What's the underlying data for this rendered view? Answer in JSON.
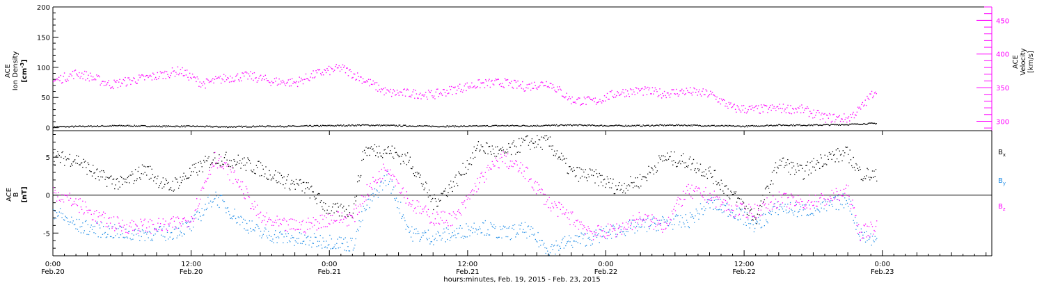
{
  "chart_data": [
    {
      "type": "scatter",
      "panel": "plasma",
      "ylabel_left": [
        "ACE",
        "Ion Density",
        "[cm",
        "-3",
        "]"
      ],
      "ylabel_right": [
        "ACE",
        "Velocity",
        "[km/s]"
      ],
      "left_axis": {
        "ylim": [
          -5,
          200
        ],
        "ticks": [
          "0",
          "50",
          "100",
          "150",
          "200"
        ]
      },
      "right_axis": {
        "ylim": [
          286,
          470
        ],
        "ticks": [
          "300",
          "350",
          "400",
          "450"
        ]
      },
      "colors": {
        "density": "#000000",
        "velocity": "#ff00ff"
      },
      "series": [
        {
          "name": "Ion Density",
          "axis": "left",
          "x_hours": [
            0,
            3,
            6,
            9,
            12,
            15,
            18,
            21,
            24,
            27,
            30,
            33,
            36,
            39,
            42,
            45,
            48,
            51,
            54,
            57,
            60,
            63,
            66,
            69,
            71.5
          ],
          "values": [
            2,
            3,
            4,
            3,
            3,
            2,
            3,
            3,
            4,
            5,
            4,
            3,
            3,
            4,
            4,
            5,
            4,
            4,
            5,
            4,
            3,
            5,
            5,
            6,
            8
          ]
        },
        {
          "name": "Velocity",
          "axis": "right",
          "x_hours": [
            0,
            2,
            3,
            5,
            7,
            9,
            11,
            13,
            15,
            17,
            19,
            21,
            23,
            25,
            27,
            29,
            31,
            33,
            35,
            37,
            39,
            41,
            43,
            45,
            47,
            49,
            51,
            53,
            55,
            57,
            59,
            61,
            63,
            65,
            67,
            69,
            70,
            71.5
          ],
          "values": [
            360,
            372,
            368,
            355,
            362,
            368,
            376,
            356,
            365,
            368,
            360,
            358,
            372,
            380,
            362,
            343,
            342,
            340,
            349,
            356,
            358,
            352,
            358,
            332,
            330,
            343,
            346,
            342,
            345,
            341,
            320,
            318,
            320,
            318,
            306,
            305,
            318,
            350
          ]
        }
      ]
    },
    {
      "type": "scatter",
      "panel": "magnetic-field",
      "ylabel_left": [
        "ACE",
        "B",
        "[nT]"
      ],
      "ylim": [
        -8,
        8.5
      ],
      "ticks": [
        "5",
        "0",
        "-5"
      ],
      "zero_line": true,
      "legend_position": "right",
      "colors": {
        "Bx": "#000000",
        "By": "#1e8ce6",
        "Bz": "#ff00ff"
      },
      "series": [
        {
          "name": "Bx",
          "label_main": "B",
          "label_sub": "x",
          "x_hours": [
            0,
            2,
            4,
            6,
            8,
            10,
            12,
            14,
            16,
            18,
            20,
            22,
            24,
            26,
            27,
            29,
            31,
            33,
            35,
            37,
            39,
            41,
            43,
            45,
            47,
            49,
            51,
            53,
            55,
            57,
            59,
            61,
            63,
            65,
            67,
            69,
            70,
            71.5
          ],
          "values": [
            5,
            4.8,
            2.5,
            1.5,
            3.5,
            1,
            3,
            5,
            4.5,
            3.5,
            2,
            1,
            -2,
            -2,
            6,
            6,
            4.5,
            -1,
            2,
            6.5,
            5.5,
            7,
            7,
            3,
            2.5,
            1,
            2,
            5,
            4.5,
            3,
            0,
            -3,
            4.5,
            3,
            5,
            5.5,
            3,
            2.5
          ]
        },
        {
          "name": "By",
          "label_main": "B",
          "label_sub": "y",
          "x_hours": [
            0,
            2,
            4,
            6,
            8,
            10,
            12,
            14,
            16,
            18,
            20,
            22,
            24,
            26,
            27,
            29,
            31,
            33,
            35,
            37,
            39,
            41,
            43,
            45,
            47,
            49,
            51,
            53,
            55,
            57,
            59,
            61,
            63,
            65,
            67,
            69,
            70,
            71.5
          ],
          "values": [
            -2,
            -4,
            -4.5,
            -5,
            -5,
            -5,
            -4,
            0,
            -3,
            -5,
            -5.5,
            -6,
            -6,
            -6.5,
            -2,
            2.5,
            -5,
            -5.5,
            -5,
            -4,
            -5,
            -4.5,
            -7,
            -6,
            -5.5,
            -4.5,
            -4,
            -3.5,
            -3.5,
            -1,
            -2,
            -4,
            -1.5,
            -2,
            -1.5,
            -0.5,
            -5,
            -6
          ]
        },
        {
          "name": "Bz",
          "label_main": "B",
          "label_sub": "z",
          "x_hours": [
            0,
            2,
            4,
            6,
            8,
            10,
            12,
            14,
            16,
            18,
            20,
            22,
            24,
            26,
            27,
            29,
            31,
            33,
            35,
            37,
            39,
            41,
            43,
            45,
            47,
            49,
            51,
            53,
            55,
            57,
            59,
            61,
            63,
            65,
            67,
            69,
            70,
            71.5
          ],
          "values": [
            0.5,
            -1,
            -3,
            -4,
            -4,
            -4,
            -3,
            5,
            2,
            -3,
            -4,
            -4,
            -3,
            -3,
            0,
            4,
            -1,
            -3,
            -3,
            2,
            5,
            3,
            -1,
            -3,
            -5,
            -4.5,
            -3,
            -4,
            0.5,
            0,
            -2,
            -2,
            -0.5,
            -1,
            -0.5,
            0.5,
            -5,
            -4
          ]
        }
      ]
    }
  ],
  "x_axis": {
    "range_hours": [
      0,
      81.5
    ],
    "ticks": [
      {
        "hours": 0,
        "time": "0:00",
        "date": "Feb.20"
      },
      {
        "hours": 12,
        "time": "12:00",
        "date": "Feb.20"
      },
      {
        "hours": 24,
        "time": "0:00",
        "date": "Feb.21"
      },
      {
        "hours": 36,
        "time": "12:00",
        "date": "Feb.21"
      },
      {
        "hours": 48,
        "time": "0:00",
        "date": "Feb.22"
      },
      {
        "hours": 60,
        "time": "12:00",
        "date": "Feb.22"
      },
      {
        "hours": 72,
        "time": "0:00",
        "date": "Feb.23"
      }
    ],
    "label": "hours:minutes, Feb. 19, 2015 - Feb. 23, 2015"
  }
}
